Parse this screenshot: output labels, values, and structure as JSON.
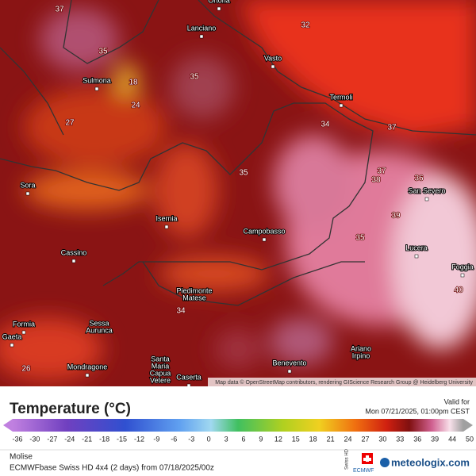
{
  "map": {
    "cities": [
      [
        "Ortona"
      ],
      [
        "Lanciano"
      ],
      [
        "Vasto"
      ],
      [
        "Sulmona"
      ],
      [
        "Termoli"
      ],
      [
        "San Severo"
      ],
      [
        "Sora"
      ],
      [
        "Isernia"
      ],
      [
        "Campobasso"
      ],
      [
        "Lucera"
      ],
      [
        "Foggia"
      ],
      [
        "Cassino"
      ],
      [
        "Piedimonte",
        "Matese"
      ],
      [
        "Formia"
      ],
      [
        "Gaeta"
      ],
      [
        "Sessa",
        "Aurunca"
      ],
      [
        "Mondragone"
      ],
      [
        "Santa",
        "Maria",
        "Capua",
        "Vetere"
      ],
      [
        "Caserta"
      ],
      [
        "Benevento"
      ],
      [
        "Ariano",
        "Irpino"
      ]
    ],
    "temperature_labels": [
      37,
      35,
      18,
      35,
      32,
      34,
      37,
      35,
      37,
      38,
      36,
      39,
      35,
      40,
      24,
      27,
      26,
      34
    ],
    "attribution": "Map data © OpenStreetMap contributors, rendering GIScience Research Group @ Heidelberg University"
  },
  "legend": {
    "title": "Temperature (°C)",
    "valid_label": "Valid for",
    "valid_time": "Mon 07/21/2025, 01:00pm CEST",
    "ticks": [
      -36,
      -30,
      -27,
      -24,
      -21,
      -18,
      -15,
      -12,
      -9,
      -6,
      -3,
      0,
      3,
      6,
      9,
      12,
      15,
      18,
      21,
      24,
      27,
      30,
      33,
      36,
      39,
      44,
      50
    ]
  },
  "footer": {
    "region": "Molise",
    "model": "ECMWFbase Swiss HD 4x4 (2 days) from 07/18/2025/00z",
    "badge_top": "Swiss HD",
    "badge_bottom": "ECMWF",
    "brand": "meteologix.com"
  }
}
